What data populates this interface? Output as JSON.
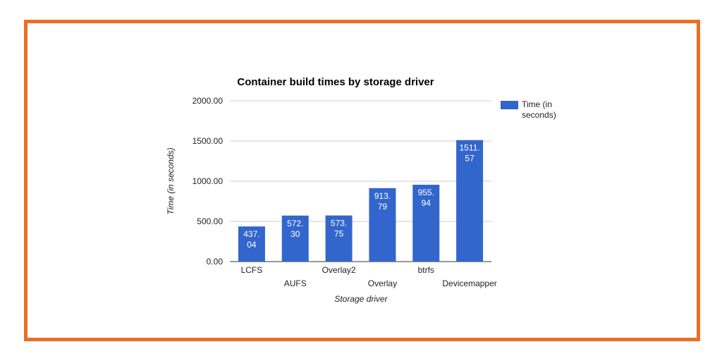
{
  "colors": {
    "frame": "#ee6c27",
    "bar": "#3366cc",
    "grid": "#cccccc",
    "text": "#222222"
  },
  "chart_data": {
    "type": "bar",
    "title": "Container build times by storage driver",
    "xlabel": "Storage driver",
    "ylabel": "Time (in seconds)",
    "categories": [
      "LCFS",
      "AUFS",
      "Overlay2",
      "Overlay",
      "btrfs",
      "Devicemapper"
    ],
    "series": [
      {
        "name": "Time (in seconds)",
        "values": [
          437.04,
          572.3,
          573.75,
          913.79,
          955.94,
          1511.57
        ]
      }
    ],
    "data_labels": [
      [
        "437.",
        "04"
      ],
      [
        "572.",
        "30"
      ],
      [
        "573.",
        "75"
      ],
      [
        "913.",
        "79"
      ],
      [
        "955.",
        "94"
      ],
      [
        "1511.",
        "57"
      ]
    ],
    "yticks": [
      "0.00",
      "500.00",
      "1000.00",
      "1500.00",
      "2000.00"
    ],
    "ylim": [
      0,
      2000
    ],
    "grid": true,
    "legend": "right"
  }
}
